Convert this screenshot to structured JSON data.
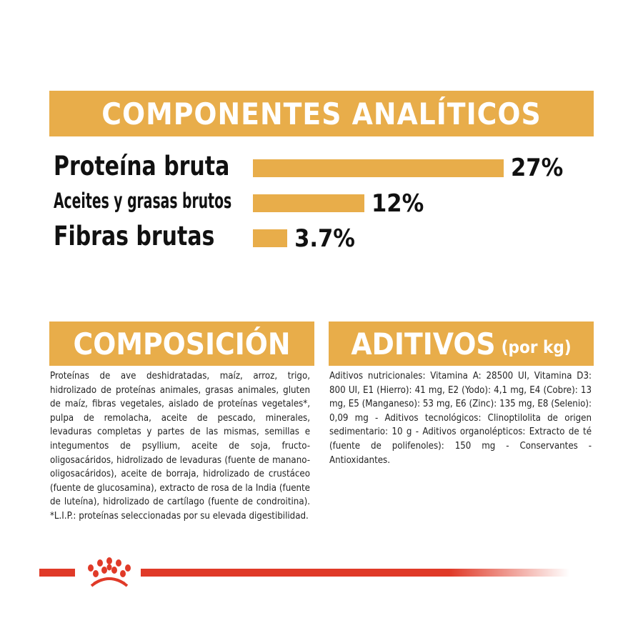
{
  "header": {
    "title": "COMPONENTES ANALÍTICOS"
  },
  "analytics": [
    {
      "label": "Proteína bruta",
      "value": 27,
      "value_label": "27%"
    },
    {
      "label": "Aceites y grasas brutos",
      "value": 12,
      "value_label": "12%"
    },
    {
      "label": "Fibras brutas",
      "value": 3.7,
      "value_label": "3.7%"
    }
  ],
  "composition": {
    "title": "COMPOSICIÓN",
    "text": "Proteínas de ave deshidratadas, maíz, arroz, trigo, hidrolizado de proteínas animales, grasas animales, gluten de maíz, fibras vegetales, aislado de proteínas vegetales*, pulpa de remolacha, aceite de pescado, minerales, levaduras completas y partes de las mismas, semillas e integumentos de psyllium, aceite de soja, fructo-oligosacáridos, hidrolizado de levaduras (fuente de manano-oligosacáridos), aceite de borraja, hidrolizado de crustáceo (fuente de glucosamina), extracto de rosa de la India (fuente de luteína), hidrolizado de cartílago (fuente de condroitina). *L.I.P.: proteínas seleccionadas por su elevada digestibilidad."
  },
  "additives": {
    "title": "ADITIVOS",
    "subtitle": "(por kg)",
    "text": "Aditivos nutricionales: Vitamina A: 28500 UI, Vitamina D3: 800 UI, E1 (Hierro): 41 mg, E2 (Yodo): 4,1 mg, E4 (Cobre): 13 mg, E5 (Manganeso): 53 mg, E6 (Zinc): 135 mg, E8 (Selenio): 0,09 mg - Aditivos tecnológicos: Clinoptilolita de origen sedimentario: 10 g - Aditivos organolépticos: Extracto de té (fuente de polifenoles): 150 mg - Conservantes - Antioxidantes."
  },
  "colors": {
    "accent": "#e8ad4a",
    "brand_red": "#e03a28"
  },
  "footer": {
    "logo_icon": "royal-canin-crown-icon"
  }
}
